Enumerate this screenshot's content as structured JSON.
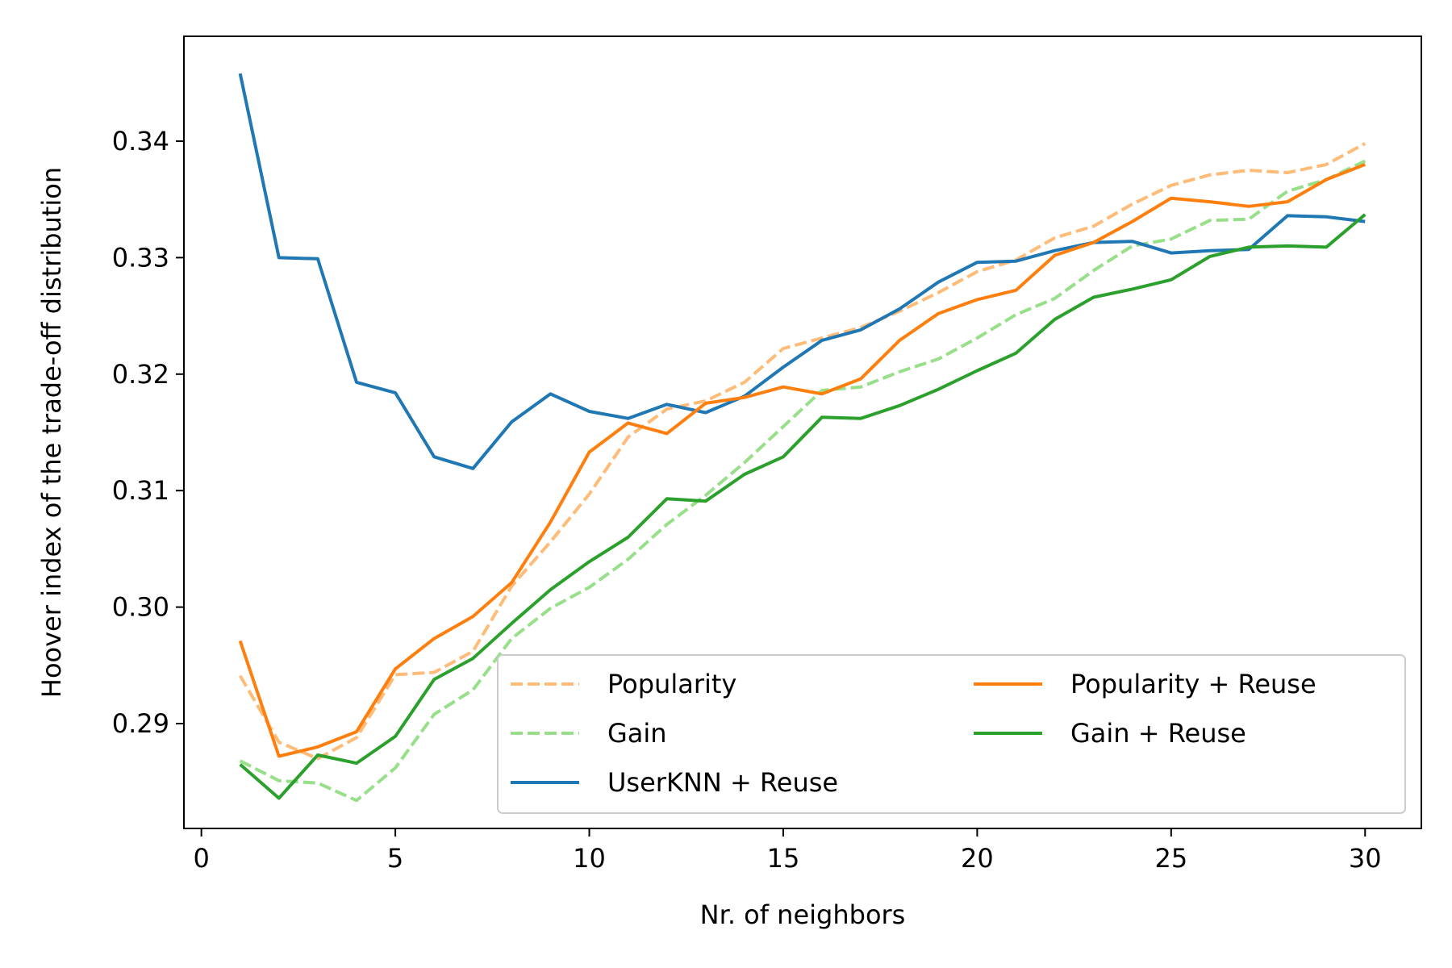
{
  "chart_data": {
    "type": "line",
    "xlabel": "Nr. of neighbors",
    "ylabel": "Hoover index of the trade-off distribution",
    "xlim": [
      -0.45,
      31.45
    ],
    "ylim": [
      0.281,
      0.349
    ],
    "xticks": [
      0,
      5,
      10,
      15,
      20,
      25,
      30
    ],
    "yticks": [
      0.29,
      0.3,
      0.31,
      0.32,
      0.33,
      0.34
    ],
    "xtick_labels": [
      "0",
      "5",
      "10",
      "15",
      "20",
      "25",
      "30"
    ],
    "ytick_labels": [
      "0.29",
      "0.30",
      "0.31",
      "0.32",
      "0.33",
      "0.34"
    ],
    "grid": false,
    "legend": {
      "placement": "lower-right",
      "columns": 2
    },
    "x": [
      1,
      2,
      3,
      4,
      5,
      6,
      7,
      8,
      9,
      10,
      11,
      12,
      13,
      14,
      15,
      16,
      17,
      18,
      19,
      20,
      21,
      22,
      23,
      24,
      25,
      26,
      27,
      28,
      29,
      30
    ],
    "series": [
      {
        "name": "Popularity",
        "color": "#ffbb78",
        "dashed": true,
        "values": [
          0.2941,
          0.2884,
          0.287,
          0.2888,
          0.2942,
          0.2944,
          0.2962,
          0.3018,
          0.3056,
          0.3097,
          0.3146,
          0.317,
          0.3177,
          0.3193,
          0.3222,
          0.3231,
          0.324,
          0.3254,
          0.327,
          0.3288,
          0.3298,
          0.3317,
          0.3327,
          0.3346,
          0.3362,
          0.3371,
          0.3375,
          0.3373,
          0.338,
          0.3398
        ]
      },
      {
        "name": "Gain",
        "color": "#98df8a",
        "dashed": true,
        "values": [
          0.2868,
          0.2851,
          0.2849,
          0.2834,
          0.2862,
          0.2908,
          0.2929,
          0.2973,
          0.2999,
          0.3017,
          0.3041,
          0.3071,
          0.3096,
          0.3124,
          0.3155,
          0.3186,
          0.3189,
          0.3202,
          0.3213,
          0.3231,
          0.3251,
          0.3265,
          0.3289,
          0.331,
          0.3316,
          0.3332,
          0.3333,
          0.3357,
          0.3367,
          0.3383
        ]
      },
      {
        "name": "UserKNN + Reuse",
        "color": "#1f77b4",
        "dashed": false,
        "values": [
          0.3458,
          0.33,
          0.3299,
          0.3193,
          0.3184,
          0.3129,
          0.3119,
          0.3159,
          0.3183,
          0.3168,
          0.3162,
          0.3174,
          0.3167,
          0.3181,
          0.3206,
          0.3229,
          0.3238,
          0.3256,
          0.3279,
          0.3296,
          0.3297,
          0.3306,
          0.3313,
          0.3314,
          0.3304,
          0.3306,
          0.3307,
          0.3336,
          0.3335,
          0.3331
        ]
      },
      {
        "name": "Popularity + Reuse",
        "color": "#ff7f0e",
        "dashed": false,
        "values": [
          0.2971,
          0.2872,
          0.288,
          0.2893,
          0.2947,
          0.2973,
          0.2992,
          0.3021,
          0.3073,
          0.3133,
          0.3158,
          0.3149,
          0.3175,
          0.318,
          0.3189,
          0.3183,
          0.3196,
          0.3229,
          0.3252,
          0.3264,
          0.3272,
          0.3302,
          0.3313,
          0.3331,
          0.3351,
          0.3348,
          0.3344,
          0.3348,
          0.3367,
          0.338
        ]
      },
      {
        "name": "Gain + Reuse",
        "color": "#2ca02c",
        "dashed": false,
        "values": [
          0.2865,
          0.2836,
          0.2873,
          0.2866,
          0.2889,
          0.2938,
          0.2956,
          0.2986,
          0.3015,
          0.3039,
          0.306,
          0.3093,
          0.3091,
          0.3114,
          0.3129,
          0.3163,
          0.3162,
          0.3173,
          0.3187,
          0.3203,
          0.3218,
          0.3247,
          0.3266,
          0.3273,
          0.3281,
          0.3301,
          0.3309,
          0.331,
          0.3309,
          0.3337
        ]
      }
    ]
  }
}
